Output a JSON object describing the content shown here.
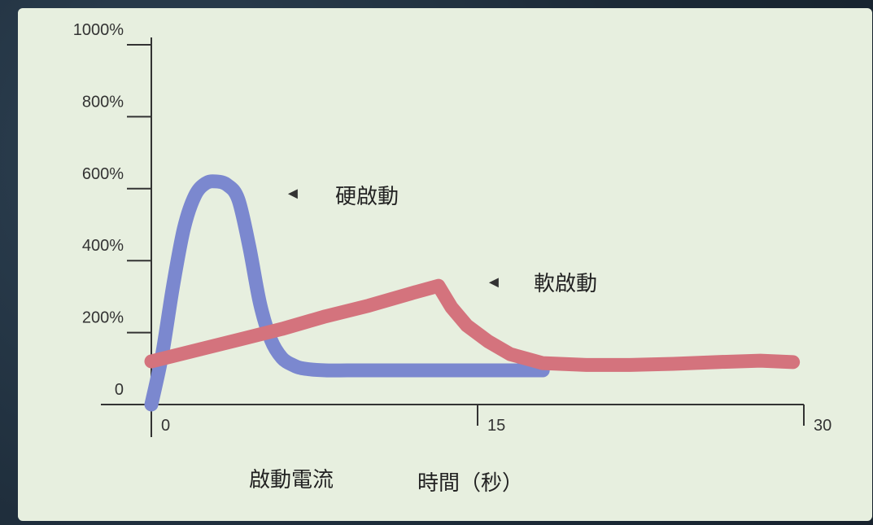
{
  "chart_data": {
    "type": "line",
    "title": "",
    "ylabel": "啟動電流",
    "xlabel": "時間（秒）",
    "xlim": [
      0,
      30
    ],
    "ylim": [
      0,
      1000
    ],
    "y_ticks": [
      "0",
      "200%",
      "400%",
      "600%",
      "800%",
      "1000%"
    ],
    "x_ticks": [
      "0",
      "15",
      "30"
    ],
    "grid": false,
    "series": [
      {
        "name": "硬啟動",
        "color": "#7b88cf",
        "x": [
          0,
          0.5,
          1.0,
          1.5,
          2.0,
          2.5,
          3.0,
          3.5,
          4.0,
          4.5,
          5.0,
          5.5,
          6.0,
          6.5,
          7.0,
          8.0,
          9.0,
          10.0,
          12.0,
          14.0,
          16.0,
          18.0
        ],
        "y": [
          0,
          140,
          330,
          490,
          580,
          615,
          620,
          610,
          570,
          440,
          280,
          180,
          130,
          110,
          100,
          95,
          95,
          95,
          95,
          95,
          95,
          95
        ]
      },
      {
        "name": "軟啟動",
        "color": "#d4737d",
        "x": [
          0,
          2,
          4,
          6,
          8,
          10,
          12,
          13.2,
          13.8,
          14.5,
          15.5,
          16.5,
          18,
          20,
          22,
          24,
          26,
          28,
          29.5
        ],
        "y": [
          120,
          150,
          180,
          210,
          245,
          275,
          310,
          330,
          270,
          220,
          175,
          140,
          115,
          110,
          110,
          113,
          118,
          122,
          118
        ]
      }
    ],
    "annotations": [
      {
        "text": "硬啟動",
        "arrow": "◄"
      },
      {
        "text": "軟啟動",
        "arrow": "◄"
      }
    ]
  }
}
